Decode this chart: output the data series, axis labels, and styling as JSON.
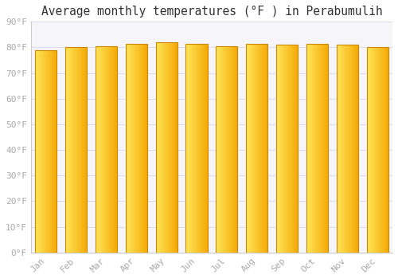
{
  "title": "Average monthly temperatures (°F ) in Perabumulih",
  "months": [
    "Jan",
    "Feb",
    "Mar",
    "Apr",
    "May",
    "Jun",
    "Jul",
    "Aug",
    "Sep",
    "Oct",
    "Nov",
    "Dec"
  ],
  "values": [
    79,
    80,
    80.5,
    81.5,
    82,
    81.5,
    80.5,
    81.5,
    81,
    81.5,
    81,
    80
  ],
  "bar_color_left": "#FFD966",
  "bar_color_right": "#F5A800",
  "bar_edge_color": "#CC8800",
  "background_color": "#FFFFFF",
  "plot_bg_color": "#F5F5FA",
  "grid_color": "#DDDDEE",
  "ylim": [
    0,
    90
  ],
  "yticks": [
    0,
    10,
    20,
    30,
    40,
    50,
    60,
    70,
    80,
    90
  ],
  "ytick_labels": [
    "0°F",
    "10°F",
    "20°F",
    "30°F",
    "40°F",
    "50°F",
    "60°F",
    "70°F",
    "80°F",
    "90°F"
  ],
  "tick_color": "#AAAAAA",
  "title_fontsize": 10.5,
  "tick_fontsize": 8,
  "bar_width": 0.72,
  "figsize": [
    5.0,
    3.5
  ],
  "dpi": 100
}
